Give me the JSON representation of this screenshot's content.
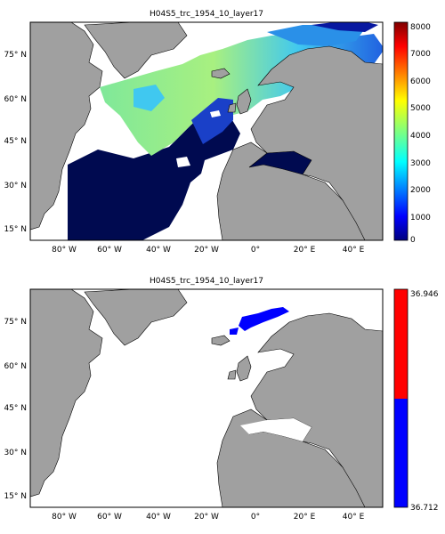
{
  "maps": [
    {
      "title": "H04S5_trc_1954_10_layer17",
      "lat_ticks": [
        "75° N",
        "60° N",
        "45° N",
        "30° N",
        "15° N"
      ],
      "lon_ticks": [
        "80° W",
        "60° W",
        "40° W",
        "20° W",
        "0°",
        "20° E",
        "40° E"
      ],
      "colorbar": {
        "type": "continuous",
        "range": [
          0,
          8000
        ],
        "labels": [
          "8000",
          "7000",
          "6000",
          "5000",
          "4000",
          "3000",
          "2000",
          "1000",
          "0"
        ],
        "colormap": "jet"
      }
    },
    {
      "title": "H04S5_trc_1954_10_layer17",
      "lat_ticks": [
        "75° N",
        "60° N",
        "45° N",
        "30° N",
        "15° N"
      ],
      "lon_ticks": [
        "80° W",
        "60° W",
        "40° W",
        "20° W",
        "0°",
        "20° E",
        "40° E"
      ],
      "colorbar": {
        "type": "two-class",
        "max_label": "36.946",
        "min_label": "36.712",
        "colors": [
          "#ff0000",
          "#0000ff"
        ]
      }
    }
  ],
  "colors": {
    "land": "#a0a0a0",
    "ocean_low": "#000a50",
    "nodata": "#ffffff"
  }
}
